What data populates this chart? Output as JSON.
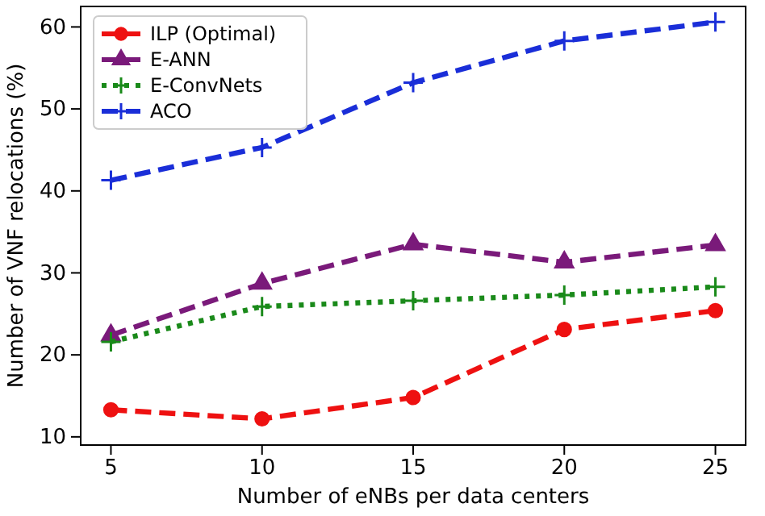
{
  "chart_data": {
    "type": "line",
    "xlabel": "Number of eNBs per data centers",
    "ylabel": "Number of VNF relocations (%)",
    "x": [
      5,
      10,
      15,
      20,
      25
    ],
    "xlim": [
      4,
      26
    ],
    "xticks": [
      5,
      10,
      15,
      20,
      25
    ],
    "ylim": [
      9,
      62.5
    ],
    "yticks": [
      10,
      20,
      30,
      40,
      50,
      60
    ],
    "legend": "top left",
    "grid": false,
    "series": [
      {
        "name": "ILP (Optimal)",
        "color": "#ee1111",
        "values": [
          13.3,
          12.2,
          14.8,
          23.1,
          25.4
        ],
        "marker": "circle",
        "line_style": "dashed"
      },
      {
        "name": "E-ANN",
        "color": "#7a1a7a",
        "values": [
          22.4,
          28.7,
          33.5,
          31.3,
          33.4
        ],
        "marker": "triangle",
        "line_style": "dashed"
      },
      {
        "name": "E-ConvNets",
        "color": "#1a8a1a",
        "values": [
          21.6,
          25.9,
          26.6,
          27.3,
          28.3
        ],
        "marker": "cross",
        "line_style": "dotted"
      },
      {
        "name": "ACO",
        "color": "#1a2ed8",
        "values": [
          41.3,
          45.3,
          53.2,
          58.3,
          60.6
        ],
        "marker": "cross",
        "line_style": "dashed"
      }
    ]
  }
}
